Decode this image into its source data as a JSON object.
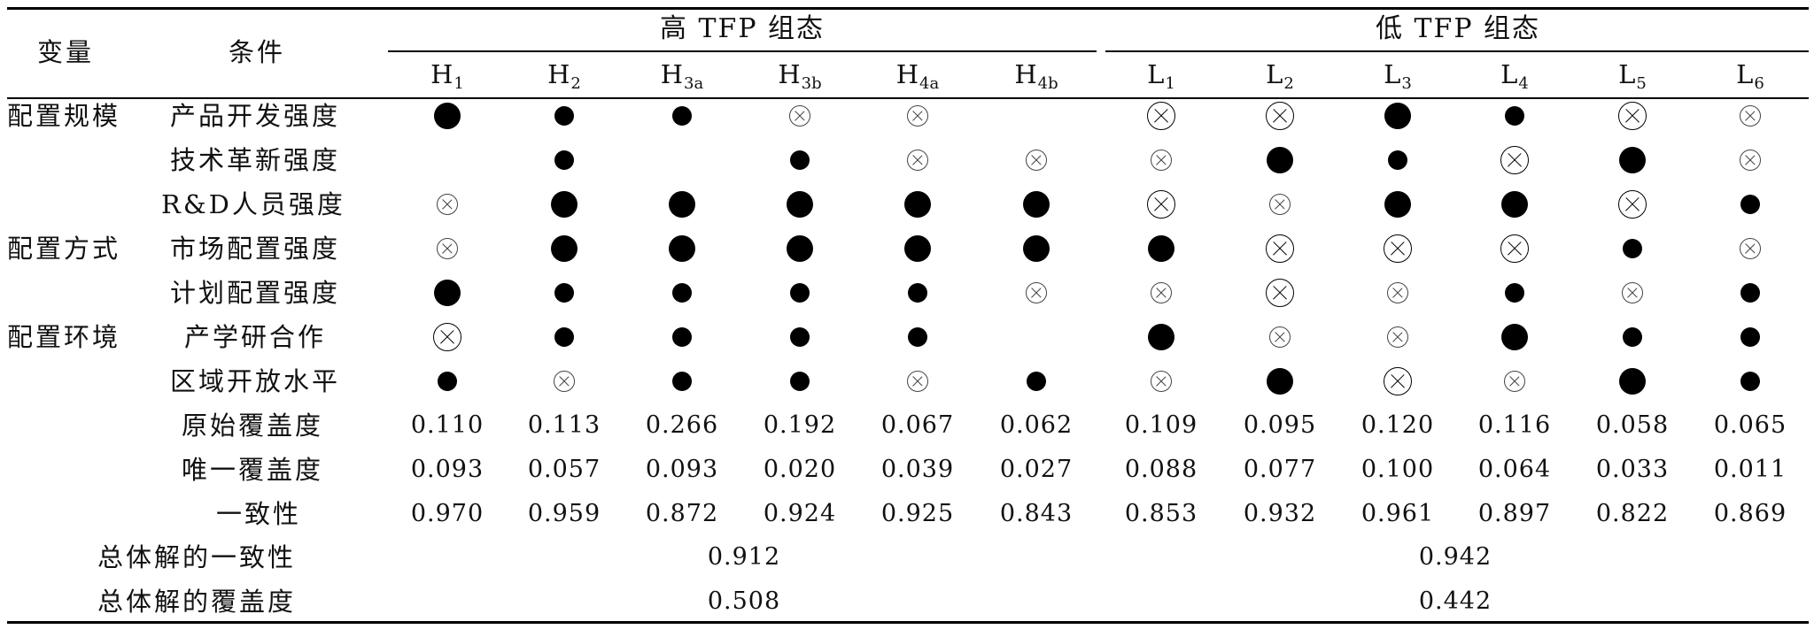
{
  "header": {
    "variable": "变量",
    "condition": "条件",
    "groups": [
      {
        "label": "高 TFP 组态"
      },
      {
        "label": "低 TFP 组态"
      }
    ],
    "columns": [
      {
        "base": "H",
        "sub": "1"
      },
      {
        "base": "H",
        "sub": "2"
      },
      {
        "base": "H",
        "sub": "3a"
      },
      {
        "base": "H",
        "sub": "3b"
      },
      {
        "base": "H",
        "sub": "4a"
      },
      {
        "base": "H",
        "sub": "4b"
      },
      {
        "base": "L",
        "sub": "1"
      },
      {
        "base": "L",
        "sub": "2"
      },
      {
        "base": "L",
        "sub": "3"
      },
      {
        "base": "L",
        "sub": "4"
      },
      {
        "base": "L",
        "sub": "5"
      },
      {
        "base": "L",
        "sub": "6"
      }
    ]
  },
  "rows": [
    {
      "variable": "配置规模",
      "condition": "产品开发强度",
      "cells": [
        "core",
        "periph",
        "periph",
        "xperiph",
        "xperiph",
        "none",
        "xcore",
        "xcore",
        "core",
        "periph",
        "xcore",
        "xperiph"
      ]
    },
    {
      "variable": "",
      "condition": "技术革新强度",
      "cells": [
        "none",
        "periph",
        "none",
        "periph",
        "xperiph",
        "xperiph",
        "xperiph",
        "core",
        "periph",
        "xcore",
        "core",
        "xperiph"
      ]
    },
    {
      "variable": "",
      "condition": "R&D人员强度",
      "cells": [
        "xperiph",
        "core",
        "core",
        "core",
        "core",
        "core",
        "xcore",
        "xperiph",
        "core",
        "core",
        "xcore",
        "periph"
      ]
    },
    {
      "variable": "配置方式",
      "condition": "市场配置强度",
      "cells": [
        "xperiph",
        "core",
        "core",
        "core",
        "core",
        "core",
        "core",
        "xcore",
        "xcore",
        "xcore",
        "periph",
        "xperiph"
      ]
    },
    {
      "variable": "",
      "condition": "计划配置强度",
      "cells": [
        "core",
        "periph",
        "periph",
        "periph",
        "periph",
        "xperiph",
        "xperiph",
        "xcore",
        "xperiph",
        "periph",
        "xperiph",
        "periph"
      ]
    },
    {
      "variable": "配置环境",
      "condition": "产学研合作",
      "cells": [
        "xcore",
        "periph",
        "periph",
        "periph",
        "periph",
        "none",
        "core",
        "xperiph",
        "xperiph",
        "core",
        "periph",
        "periph"
      ]
    },
    {
      "variable": "",
      "condition": "区域开放水平",
      "cells": [
        "periph",
        "xperiph",
        "periph",
        "periph",
        "xperiph",
        "periph",
        "xperiph",
        "core",
        "xcore",
        "xperiph",
        "core",
        "periph"
      ]
    }
  ],
  "metrics": [
    {
      "label": "原始覆盖度",
      "values": [
        "0.110",
        "0.113",
        "0.266",
        "0.192",
        "0.067",
        "0.062",
        "0.109",
        "0.095",
        "0.120",
        "0.116",
        "0.058",
        "0.065"
      ]
    },
    {
      "label": "唯一覆盖度",
      "values": [
        "0.093",
        "0.057",
        "0.093",
        "0.020",
        "0.039",
        "0.027",
        "0.088",
        "0.077",
        "0.100",
        "0.064",
        "0.033",
        "0.011"
      ]
    },
    {
      "label": "一致性",
      "values": [
        "0.970",
        "0.959",
        "0.872",
        "0.924",
        "0.925",
        "0.843",
        "0.853",
        "0.932",
        "0.961",
        "0.897",
        "0.822",
        "0.869"
      ]
    }
  ],
  "summary": [
    {
      "label": "总体解的一致性",
      "high": "0.912",
      "low": "0.942"
    },
    {
      "label": "总体解的覆盖度",
      "high": "0.508",
      "low": "0.442"
    }
  ]
}
